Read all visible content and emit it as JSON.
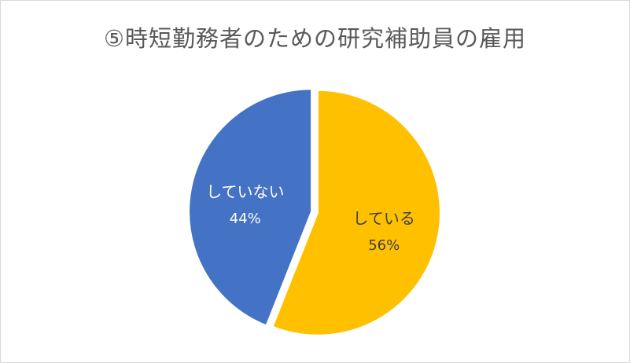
{
  "chart_data": {
    "type": "pie",
    "title": "⑤時短勤務者のための研究補助員の雇用",
    "slices": [
      {
        "label": "している",
        "value": 56,
        "value_label": "56%",
        "color": "#FFC000",
        "label_color": "#404040"
      },
      {
        "label": "していない",
        "value": 44,
        "value_label": "44%",
        "color": "#4472C4",
        "label_color": "#ffffff"
      }
    ],
    "legend": "none",
    "data_labels": "inside"
  }
}
